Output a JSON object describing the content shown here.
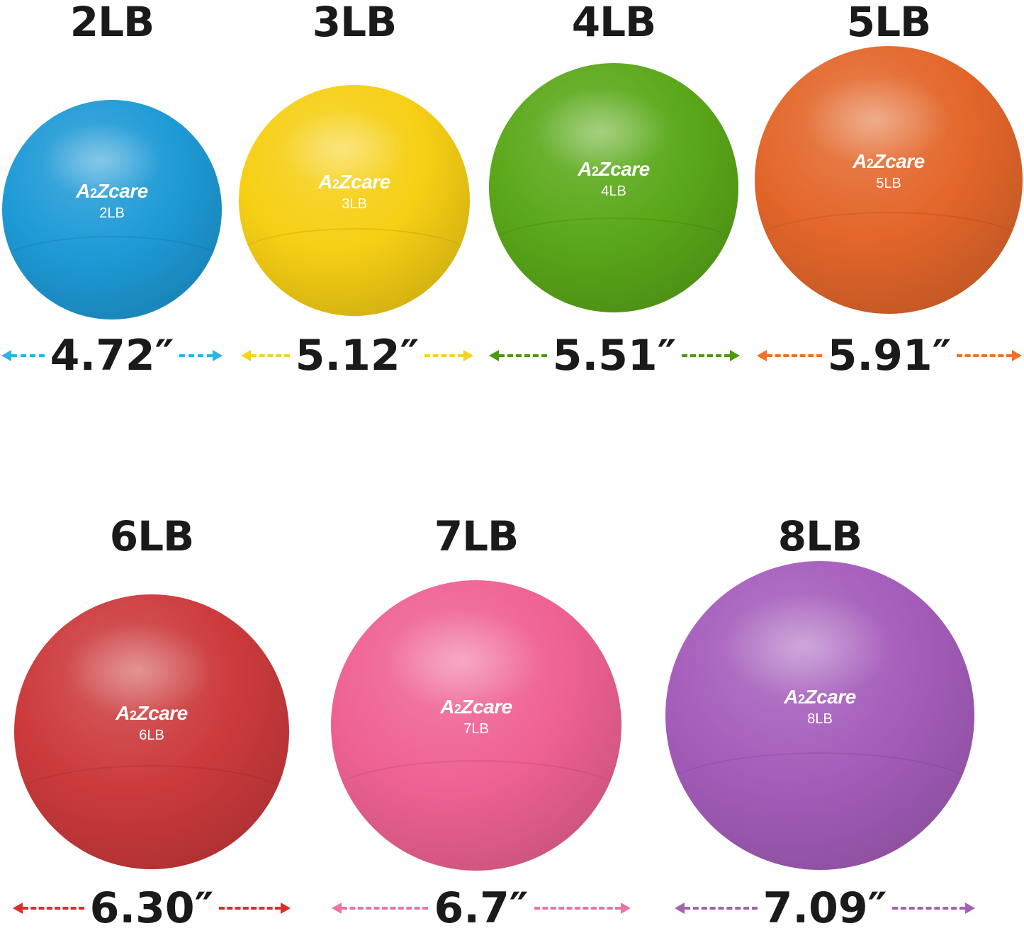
{
  "brand": "A2Zcare",
  "balls": [
    {
      "heading": "2LB",
      "label": "2LB",
      "dimension": "4.72″",
      "color": "#1e9ad6",
      "arrow_color": "#2bb5e2"
    },
    {
      "heading": "3LB",
      "label": "3LB",
      "dimension": "5.12″",
      "color": "#f6cf14",
      "arrow_color": "#f5d322"
    },
    {
      "heading": "4LB",
      "label": "4LB",
      "dimension": "5.51″",
      "color": "#5aa819",
      "arrow_color": "#4c9a16"
    },
    {
      "heading": "5LB",
      "label": "5LB",
      "dimension": "5.91″",
      "color": "#e3662a",
      "arrow_color": "#f07222"
    },
    {
      "heading": "6LB",
      "label": "6LB",
      "dimension": "6.30″",
      "color": "#cc3a3c",
      "arrow_color": "#e42a2a"
    },
    {
      "heading": "7LB",
      "label": "7LB",
      "dimension": "6.7″",
      "color": "#ef6194",
      "arrow_color": "#f072a2"
    },
    {
      "heading": "8LB",
      "label": "8LB",
      "dimension": "7.09″",
      "color": "#a55dbb",
      "arrow_color": "#a262b2"
    }
  ]
}
